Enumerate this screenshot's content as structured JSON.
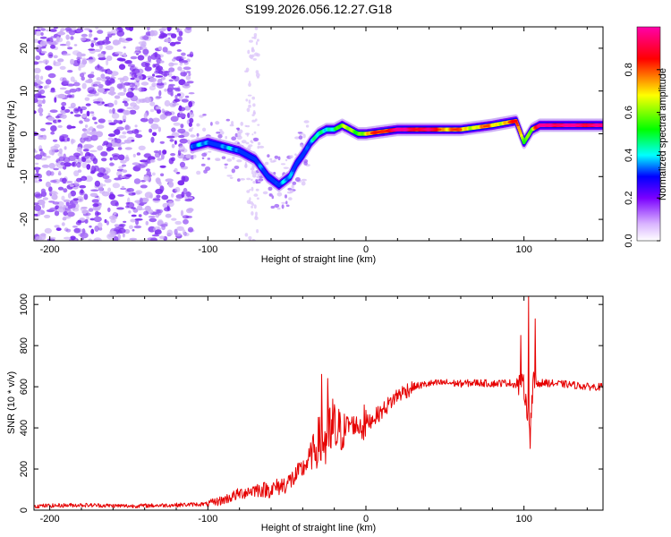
{
  "title": "S199.2026.056.12.27.G18",
  "chart_data": [
    {
      "type": "heatmap",
      "name": "spectrogram",
      "xlabel": "Height of straight line (km)",
      "ylabel": "Frequency (Hz)",
      "xlim": [
        -210,
        150
      ],
      "ylim": [
        -25,
        25
      ],
      "xticks": [
        -200,
        -100,
        0,
        100
      ],
      "yticks": [
        -20,
        -10,
        0,
        10,
        20
      ],
      "colorbar": {
        "label": "Normalized spectral amplitude",
        "range": [
          0.0,
          1.0
        ],
        "ticks": [
          0.0,
          0.2,
          0.4,
          0.6,
          0.8
        ],
        "colormap": [
          "#ffffff",
          "#7a00ff",
          "#0000ff",
          "#00ffff",
          "#00ff00",
          "#ffff00",
          "#ff0000",
          "#ff00aa"
        ]
      },
      "ridge": {
        "x": [
          -110,
          -100,
          -90,
          -80,
          -70,
          -62,
          -55,
          -48,
          -44,
          -40,
          -35,
          -30,
          -25,
          -20,
          -15,
          -10,
          -5,
          0,
          20,
          40,
          60,
          80,
          95,
          100,
          105,
          110,
          130,
          150
        ],
        "freq_hz": [
          -3,
          -2,
          -3,
          -4,
          -6,
          -10,
          -12,
          -10,
          -7,
          -5,
          -2,
          0,
          1,
          1,
          2,
          1,
          0,
          0,
          1,
          1,
          1,
          2,
          3,
          -2,
          1,
          2,
          2,
          2
        ],
        "amplitude": [
          0.35,
          0.3,
          0.35,
          0.3,
          0.25,
          0.3,
          0.35,
          0.3,
          0.3,
          0.3,
          0.35,
          0.4,
          0.45,
          0.5,
          0.55,
          0.6,
          0.6,
          0.65,
          0.95,
          0.85,
          0.7,
          0.7,
          0.75,
          0.6,
          0.65,
          0.95,
          0.95,
          0.9
        ]
      },
      "noise_region_x": [
        -210,
        -110
      ],
      "noise_amplitude": 0.12
    },
    {
      "type": "line",
      "name": "snr",
      "xlabel": "Height of straight line (km)",
      "ylabel": "SNR (10 * v/v)",
      "xlim": [
        -210,
        150
      ],
      "ylim": [
        0,
        1040
      ],
      "xticks": [
        -200,
        -100,
        0,
        100
      ],
      "yticks": [
        0,
        200,
        400,
        600,
        800,
        1000
      ],
      "color": "#e60000",
      "x": [
        -210,
        -180,
        -150,
        -120,
        -100,
        -90,
        -80,
        -70,
        -60,
        -50,
        -45,
        -40,
        -35,
        -30,
        -25,
        -20,
        -15,
        -10,
        -5,
        0,
        10,
        20,
        30,
        40,
        50,
        60,
        70,
        80,
        90,
        95,
        100,
        102,
        104,
        106,
        110,
        120,
        130,
        140,
        150
      ],
      "y": [
        20,
        25,
        20,
        25,
        30,
        50,
        80,
        100,
        100,
        130,
        160,
        200,
        260,
        330,
        340,
        380,
        380,
        420,
        410,
        420,
        480,
        560,
        600,
        615,
        620,
        615,
        620,
        615,
        620,
        610,
        600,
        500,
        420,
        620,
        620,
        615,
        610,
        600,
        600
      ],
      "spikes": [
        {
          "x": -28,
          "y": 660
        },
        {
          "x": -24,
          "y": 640
        },
        {
          "x": -21,
          "y": 540
        },
        {
          "x": 98,
          "y": 850
        },
        {
          "x": 103,
          "y": 1040
        },
        {
          "x": 104,
          "y": 300
        },
        {
          "x": 107,
          "y": 930
        }
      ]
    }
  ]
}
